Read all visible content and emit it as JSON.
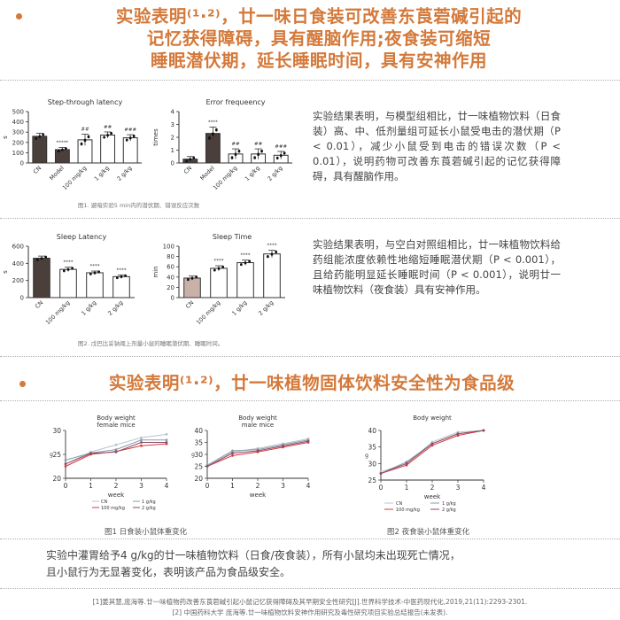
{
  "headings": {
    "h1_line1": "实验表明⁽¹·²⁾，廿一味日食装可改善东莨菪碱引起的",
    "h1_line2": "记忆获得障碍，具有醒脑作用;夜食装可缩短",
    "h1_line3": "睡眠潜伏期，延长睡眠时间，具有安神作用",
    "h2": "实验表明⁽¹·²⁾，廿一味植物固体饮料安全性为食品级"
  },
  "paragraphs": {
    "p1": "实验结果表明，与模型组相比，廿一味植物饮料（日食装）高、中、低剂量组可延长小鼠受电击的潜伏期（P < 0.01），减少小鼠受到电击的错误次数（P < 0.01），说明药物可改善东莨菪碱引起的记忆获得障碍，具有醒脑作用。",
    "p2": "实验结果表明，与空白对照组相比，廿一味植物饮料给药组能浓度依赖性地缩短睡眠潜伏期（P < 0.001），且给药能明显延长睡眠时间（P < 0.001），说明廿一味植物饮料（夜食装）具有安神作用。",
    "p3_line1": "实验中灌胃给予4 g/kg的廿一味植物饮料（日食/夜食装），所有小鼠均未出现死亡情况，",
    "p3_line2": "且小鼠行为无显著变化，表明该产品为食品级安全。"
  },
  "captions": {
    "fig_a": "图1. 避暗实验5 min内的潜伏期、错误反应次数",
    "fig_b": "图2. 戊巴比妥钠阈上剂量小鼠的睡眠潜伏期、睡眠时间。",
    "fig_c": "图1  日食装小鼠体重变化",
    "fig_d": "图2  夜食装小鼠体重变化"
  },
  "references": {
    "r1": "[1]姜其慧,庞海等.廿一味植物药改善东莨菪碱引起小鼠记忆获得障碍及其早期安全性研究[J].世界科学技术-中医药现代化,2019,21(11):2293-2301.",
    "r2": "[2] 中国药科大学 庞海等.廿一味植物饮料安神作用研究及毒性研究项目实验总结报告(未发表)."
  },
  "colors": {
    "accent": "#d4793a"
  },
  "chart_data": [
    {
      "type": "bar",
      "title": "Step-through latency",
      "ylabel": "s",
      "categories": [
        "CN",
        "Model",
        "100 mg/kg",
        "1 g/kg",
        "2 g/kg"
      ],
      "values": [
        260,
        130,
        225,
        272,
        245
      ],
      "errors": [
        30,
        20,
        55,
        30,
        30
      ],
      "fills": [
        "#4a3f3a",
        "#4a3f3a",
        "#ffffff",
        "#ffffff",
        "#ffffff"
      ],
      "annotations": [
        "",
        "*****",
        "##",
        "##",
        "###"
      ],
      "yticks": [
        "0",
        "100",
        "200",
        "300",
        "400",
        "500"
      ],
      "ylim": [
        0,
        500
      ]
    },
    {
      "type": "bar",
      "title": "Error frequeency",
      "ylabel": "times",
      "categories": [
        "CN",
        "Model",
        "100 mg/kg",
        "1 g/kg",
        "2 g/kg"
      ],
      "values": [
        0.3,
        2.3,
        0.7,
        0.7,
        0.6
      ],
      "errors": [
        0.2,
        0.5,
        0.4,
        0.4,
        0.3
      ],
      "fills": [
        "#4a3f3a",
        "#4a3f3a",
        "#ffffff",
        "#ffffff",
        "#ffffff"
      ],
      "annotations": [
        "",
        "****",
        "##",
        "##",
        "###"
      ],
      "yticks": [
        "0",
        "1",
        "2",
        "3",
        "4"
      ],
      "ylim": [
        0,
        4
      ]
    },
    {
      "type": "bar",
      "title": "Sleep Latency",
      "ylabel": "s",
      "categories": [
        "CN",
        "100 mg/kg",
        "1 g/kg",
        "2 g/kg"
      ],
      "values": [
        460,
        330,
        290,
        245
      ],
      "errors": [
        25,
        25,
        20,
        20
      ],
      "fills": [
        "#4a3f3a",
        "#ffffff",
        "#ffffff",
        "#ffffff"
      ],
      "annotations": [
        "",
        "****",
        "****",
        "****"
      ],
      "yticks": [
        "0",
        "200",
        "400",
        "600"
      ],
      "ylim": [
        0,
        600
      ]
    },
    {
      "type": "bar",
      "title": "Sleep Time",
      "ylabel": "min",
      "categories": [
        "CN",
        "100 mg/kg",
        "1 g/kg",
        "2 g/kg"
      ],
      "values": [
        38,
        57,
        68,
        85
      ],
      "errors": [
        4,
        5,
        5,
        7
      ],
      "fills": [
        "#c9b0a8",
        "#ffffff",
        "#ffffff",
        "#ffffff"
      ],
      "annotations": [
        "",
        "****",
        "****",
        "****"
      ],
      "yticks": [
        "0",
        "20",
        "40",
        "60",
        "80",
        "100"
      ],
      "ylim": [
        0,
        100
      ]
    },
    {
      "type": "line",
      "title": "Body weight",
      "subtitle": "female mice",
      "xlabel": "week",
      "ylabel": "g",
      "x": [
        0,
        1,
        2,
        3,
        4
      ],
      "xlim": [
        0,
        4
      ],
      "ylim": [
        20,
        30
      ],
      "xticks": [
        "0",
        "1",
        "2",
        "3",
        "4"
      ],
      "yticks": [
        "20",
        "25",
        "30"
      ],
      "series": [
        {
          "name": "CN",
          "color": "#b8c4cc",
          "values": [
            23.0,
            25.5,
            27.0,
            28.5,
            29.2
          ]
        },
        {
          "name": "1 g/kg",
          "color": "#8a9aa8",
          "values": [
            23.8,
            25.3,
            26.0,
            28.0,
            28.0
          ]
        },
        {
          "name": "100 mg/kg",
          "color": "#d93838",
          "values": [
            22.5,
            25.0,
            25.6,
            26.8,
            27.2
          ]
        },
        {
          "name": "2 g/kg",
          "color": "#8a4a6a",
          "values": [
            23.0,
            25.2,
            25.5,
            27.5,
            27.5
          ]
        }
      ]
    },
    {
      "type": "line",
      "title": "Body weight",
      "subtitle": "male mice",
      "xlabel": "week",
      "ylabel": "g",
      "x": [
        0,
        1,
        2,
        3,
        4
      ],
      "xlim": [
        0,
        4
      ],
      "ylim": [
        20,
        40
      ],
      "xticks": [
        "0",
        "1",
        "2",
        "3",
        "4"
      ],
      "yticks": [
        "20",
        "25",
        "30",
        "35",
        "40"
      ],
      "series": [
        {
          "name": "CN",
          "color": "#b8c4cc",
          "values": [
            25.0,
            31.0,
            32.5,
            34.5,
            36.5
          ]
        },
        {
          "name": "1 g/kg",
          "color": "#8a9aa8",
          "values": [
            25.5,
            31.5,
            32.0,
            34.0,
            36.0
          ]
        },
        {
          "name": "100 mg/kg",
          "color": "#d93838",
          "values": [
            25.0,
            29.5,
            31.0,
            33.0,
            35.0
          ]
        },
        {
          "name": "2 g/kg",
          "color": "#8a4a6a",
          "values": [
            25.0,
            30.5,
            31.5,
            33.5,
            35.5
          ]
        }
      ]
    },
    {
      "type": "line",
      "title": "Body weight",
      "subtitle": "",
      "xlabel": "week",
      "ylabel": "g",
      "x": [
        0,
        1,
        2,
        3,
        4
      ],
      "xlim": [
        0,
        4
      ],
      "ylim": [
        25,
        40
      ],
      "xticks": [
        "0",
        "1",
        "2",
        "3",
        "4"
      ],
      "yticks": [
        "25",
        "30",
        "35",
        "40"
      ],
      "series": [
        {
          "name": "CN",
          "color": "#b8c4cc",
          "values": [
            27.5,
            30.0,
            36.5,
            39.5,
            40.0
          ]
        },
        {
          "name": "1 g/kg",
          "color": "#8a9aa8",
          "values": [
            27.0,
            30.5,
            36.0,
            39.0,
            40.0
          ]
        },
        {
          "name": "100 mg/kg",
          "color": "#d93838",
          "values": [
            27.0,
            29.5,
            35.5,
            38.5,
            40.0
          ]
        },
        {
          "name": "2 g/kg",
          "color": "#8a4a6a",
          "values": [
            27.0,
            30.0,
            36.0,
            39.0,
            40.0
          ]
        }
      ]
    }
  ]
}
